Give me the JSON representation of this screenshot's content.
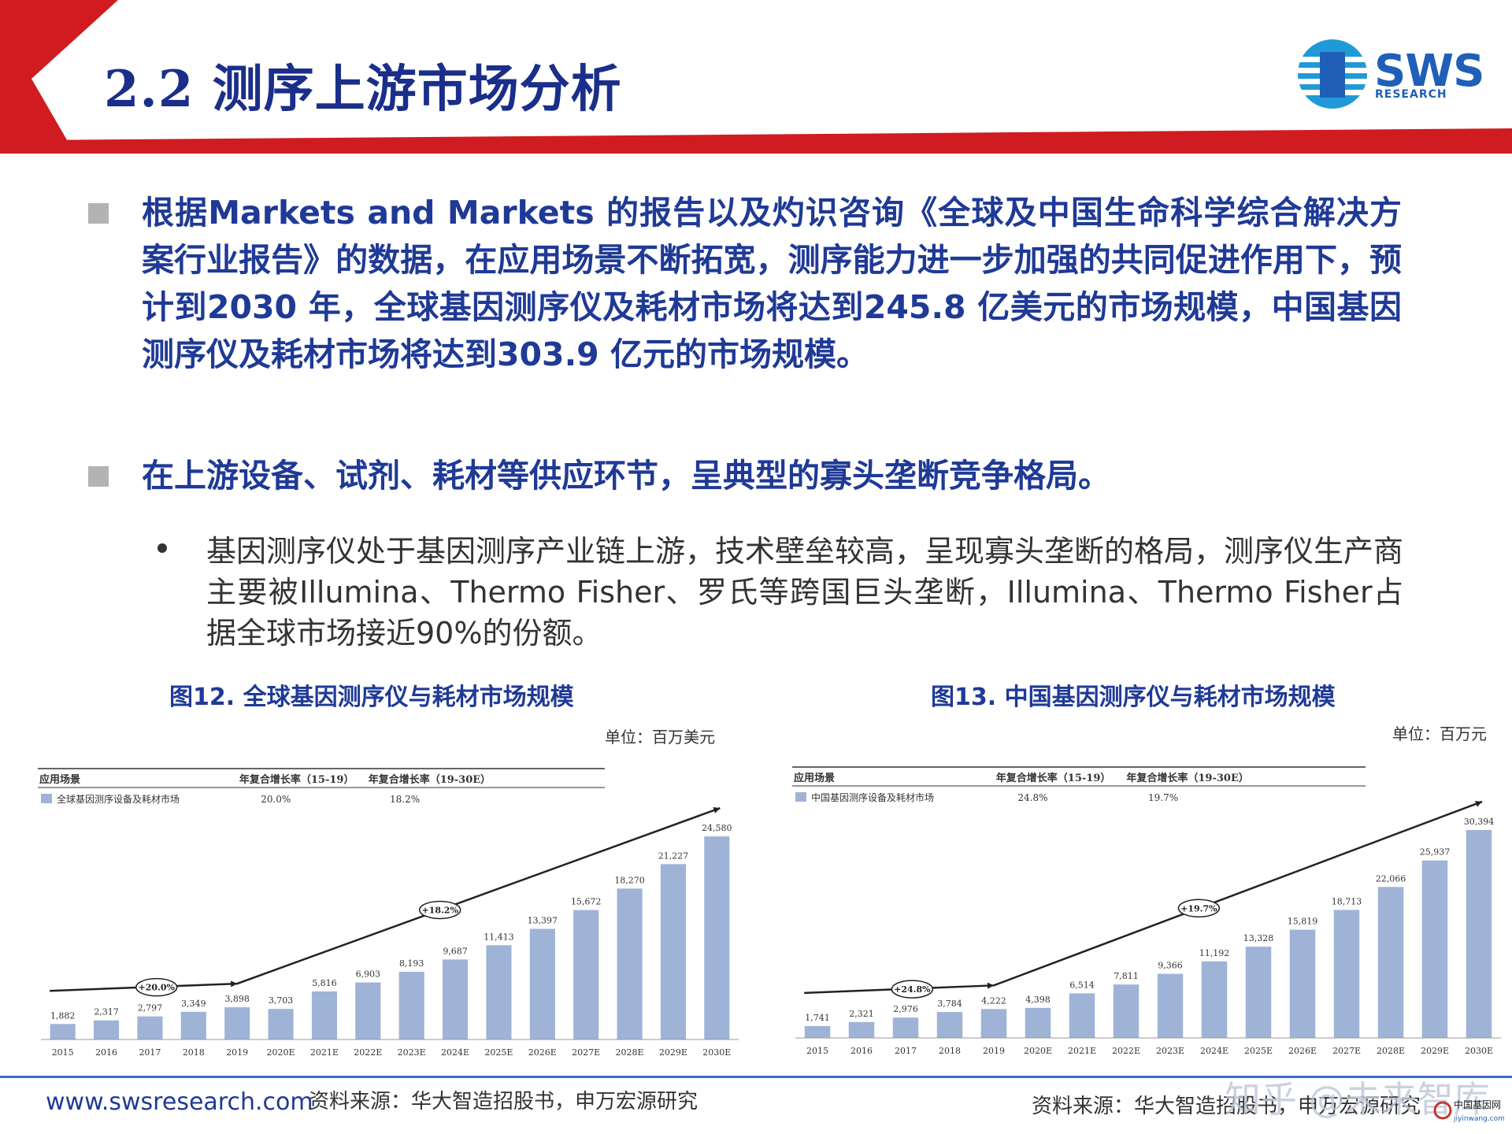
{
  "header": {
    "title": "2.2 测序上游市场分析",
    "logo_text": "SWS",
    "logo_subtext": "RESEARCH",
    "colors": {
      "red_band": "#d01c20",
      "title": "#1a2e8a",
      "logo_blue": "#1f5fb8"
    }
  },
  "bullets": [
    {
      "text": "根据Markets and Markets 的报告以及灼识咨询《全球及中国生命科学综合解决方案行业报告》的数据，在应用场景不断拓宽，测序能力进一步加强的共同促进作用下，预计到2030 年，全球基因测序仪及耗材市场将达到245.8 亿美元的市场规模，中国基因测序仪及耗材市场将达到303.9 亿元的市场规模。"
    },
    {
      "text": "在上游设备、试剂、耗材等供应环节，呈典型的寡头垄断竞争格局。"
    }
  ],
  "sub_bullet": "基因测序仪处于基因测序产业链上游，技术壁垒较高，呈现寡头垄断的格局，测序仪生产商主要被Illumina、Thermo Fisher、罗氏等跨国巨头垄断，Illumina、Thermo Fisher占据全球市场接近90%的份额。",
  "figures": [
    {
      "caption": "图12. 全球基因测序仪与耗材市场规模",
      "unit": "单位：百万美元"
    },
    {
      "caption": "图13. 中国基因测序仪与耗材市场规模",
      "unit": "单位：百万元"
    }
  ],
  "chart_data": [
    {
      "type": "bar",
      "categories": [
        "2015",
        "2016",
        "2017",
        "2018",
        "2019",
        "2020E",
        "2021E",
        "2022E",
        "2023E",
        "2024E",
        "2025E",
        "2026E",
        "2027E",
        "2028E",
        "2029E",
        "2030E"
      ],
      "values": [
        1882,
        2317,
        2797,
        3349,
        3898,
        3703,
        5816,
        6903,
        8193,
        9687,
        11413,
        13397,
        15672,
        18270,
        21227,
        24580
      ],
      "value_labels": [
        "1,882",
        "2,317",
        "2,797",
        "3,349",
        "3,898",
        "3,703",
        "5,816",
        "6,903",
        "8,193",
        "9,687",
        "11,413",
        "13,397",
        "15,672",
        "18,270",
        "21,227",
        "24,580"
      ],
      "ylim": [
        0,
        26500
      ],
      "bar_color": "#9fb3d6",
      "table": {
        "headers": [
          "应用场景",
          "年复合增长率（15-19）",
          "年复合增长率（19-30E）"
        ],
        "row": {
          "label": "全球基因测序设备及耗材市场",
          "cagr1": "20.0%",
          "cagr2": "18.2%"
        }
      },
      "annotations": [
        "+20.0%",
        "+18.2%"
      ]
    },
    {
      "type": "bar",
      "categories": [
        "2015",
        "2016",
        "2017",
        "2018",
        "2019",
        "2020E",
        "2021E",
        "2022E",
        "2023E",
        "2024E",
        "2025E",
        "2026E",
        "2027E",
        "2028E",
        "2029E",
        "2030E"
      ],
      "values": [
        1741,
        2321,
        2976,
        3784,
        4222,
        4398,
        6514,
        7811,
        9366,
        11192,
        13328,
        15819,
        18713,
        22066,
        25937,
        30394
      ],
      "value_labels": [
        "1,741",
        "2,321",
        "2,976",
        "3,784",
        "4,222",
        "4,398",
        "6,514",
        "7,811",
        "9,366",
        "11,192",
        "13,328",
        "15,819",
        "18,713",
        "22,066",
        "25,937",
        "30,394"
      ],
      "ylim": [
        0,
        32000
      ],
      "bar_color": "#9fb3d6",
      "table": {
        "headers": [
          "应用场景",
          "年复合增长率（15-19）",
          "年复合增长率（19-30E）"
        ],
        "row": {
          "label": "中国基因测序设备及耗材市场",
          "cagr1": "24.8%",
          "cagr2": "19.7%"
        }
      },
      "annotations": [
        "+24.8%",
        "+19.7%"
      ]
    }
  ],
  "footer": {
    "website": "www.swsresearch.com",
    "source_left": "资料来源：华大智造招股书，申万宏源研究",
    "source_right": "资料来源：华大智造招股书，申万宏源研究",
    "watermark": "知乎 @未来智库"
  }
}
